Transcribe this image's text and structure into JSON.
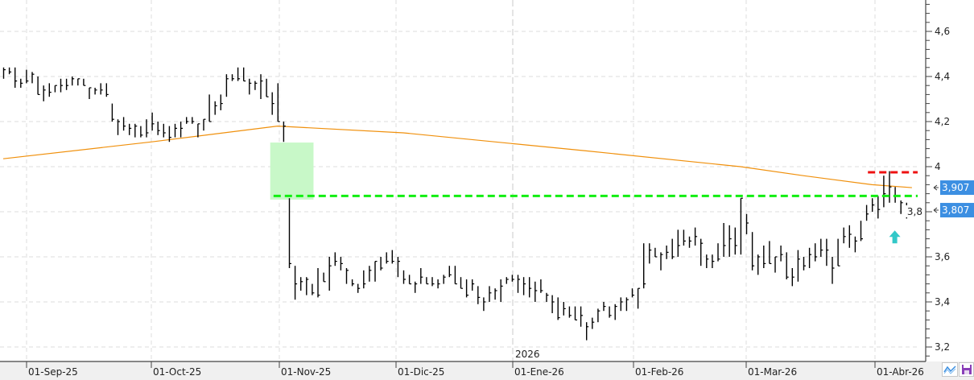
{
  "chart_data": {
    "type": "ohlc-bar",
    "title": "",
    "xlabel": "",
    "ylabel": "",
    "ylim": [
      3.16,
      4.76
    ],
    "grid": true,
    "y_ticks": [
      {
        "value": 3.2,
        "label": "3,2"
      },
      {
        "value": 3.4,
        "label": "3,4"
      },
      {
        "value": 3.6,
        "label": "3,6"
      },
      {
        "value": 3.8,
        "label": "3,8"
      },
      {
        "value": 4.0,
        "label": "4"
      },
      {
        "value": 4.2,
        "label": "4,2"
      },
      {
        "value": 4.4,
        "label": "4,4"
      },
      {
        "value": 4.6,
        "label": "4,6"
      }
    ],
    "x_ticks": [
      "01-Sep-25",
      "01-Oct-25",
      "01-Nov-25",
      "01-Dic-25",
      "01-Ene-26",
      "01-Feb-26",
      "01-Mar-26",
      "01-Abr-26"
    ],
    "year_marker": "2026",
    "bars_hlc": [
      [
        4.44,
        4.39,
        4.43
      ],
      [
        4.44,
        4.41,
        4.42
      ],
      [
        4.44,
        4.35,
        4.38
      ],
      [
        4.39,
        4.35,
        4.37
      ],
      [
        4.43,
        4.37,
        4.38
      ],
      [
        4.42,
        4.37,
        4.41
      ],
      [
        4.4,
        4.32,
        4.32
      ],
      [
        4.36,
        4.29,
        4.34
      ],
      [
        4.37,
        4.31,
        4.33
      ],
      [
        4.36,
        4.33,
        4.36
      ],
      [
        4.39,
        4.33,
        4.36
      ],
      [
        4.39,
        4.34,
        4.36
      ],
      [
        4.4,
        4.36,
        4.39
      ],
      [
        4.39,
        4.36,
        4.39
      ],
      [
        4.39,
        4.36,
        4.36
      ],
      [
        4.35,
        4.3,
        4.35
      ],
      [
        4.35,
        4.32,
        4.34
      ],
      [
        4.37,
        4.32,
        4.34
      ],
      [
        4.37,
        4.31,
        4.32
      ],
      [
        4.28,
        4.2,
        4.21
      ],
      [
        4.21,
        4.14,
        4.2
      ],
      [
        4.22,
        4.16,
        4.18
      ],
      [
        4.19,
        4.14,
        4.17
      ],
      [
        4.19,
        4.13,
        4.18
      ],
      [
        4.18,
        4.13,
        4.14
      ],
      [
        4.21,
        4.13,
        4.15
      ],
      [
        4.24,
        4.16,
        4.19
      ],
      [
        4.2,
        4.14,
        4.16
      ],
      [
        4.19,
        4.13,
        4.15
      ],
      [
        4.18,
        4.11,
        4.13
      ],
      [
        4.19,
        4.13,
        4.17
      ],
      [
        4.2,
        4.13,
        4.17
      ],
      [
        4.22,
        4.19,
        4.2
      ],
      [
        4.22,
        4.19,
        4.2
      ],
      [
        4.19,
        4.13,
        4.19
      ],
      [
        4.21,
        4.16,
        4.21
      ],
      [
        4.32,
        4.2,
        4.2
      ],
      [
        4.29,
        4.23,
        4.27
      ],
      [
        4.32,
        4.25,
        4.28
      ],
      [
        4.41,
        4.31,
        4.39
      ],
      [
        4.41,
        4.38,
        4.39
      ],
      [
        4.44,
        4.38,
        4.39
      ],
      [
        4.44,
        4.38,
        4.38
      ],
      [
        4.39,
        4.32,
        4.37
      ],
      [
        4.38,
        4.34,
        4.37
      ],
      [
        4.41,
        4.3,
        4.38
      ],
      [
        4.39,
        4.31,
        4.31
      ],
      [
        4.33,
        4.23,
        4.28
      ],
      [
        4.37,
        4.2,
        4.2
      ],
      [
        4.2,
        4.11,
        4.18
      ],
      [
        3.86,
        3.55,
        3.57
      ],
      [
        3.56,
        3.41,
        3.48
      ],
      [
        3.51,
        3.45,
        3.49
      ],
      [
        3.51,
        3.43,
        3.5
      ],
      [
        3.48,
        3.43,
        3.44
      ],
      [
        3.55,
        3.42,
        3.43
      ],
      [
        3.53,
        3.49,
        3.49
      ],
      [
        3.6,
        3.45,
        3.56
      ],
      [
        3.62,
        3.56,
        3.58
      ],
      [
        3.6,
        3.54,
        3.57
      ],
      [
        3.55,
        3.48,
        3.54
      ],
      [
        3.5,
        3.47,
        3.48
      ],
      [
        3.48,
        3.44,
        3.46
      ],
      [
        3.54,
        3.46,
        3.48
      ],
      [
        3.56,
        3.49,
        3.54
      ],
      [
        3.58,
        3.49,
        3.58
      ],
      [
        3.6,
        3.54,
        3.55
      ],
      [
        3.62,
        3.57,
        3.58
      ],
      [
        3.63,
        3.57,
        3.58
      ],
      [
        3.6,
        3.51,
        3.58
      ],
      [
        3.54,
        3.48,
        3.5
      ],
      [
        3.52,
        3.48,
        3.48
      ],
      [
        3.49,
        3.44,
        3.48
      ],
      [
        3.55,
        3.48,
        3.51
      ],
      [
        3.51,
        3.48,
        3.48
      ],
      [
        3.51,
        3.47,
        3.48
      ],
      [
        3.5,
        3.46,
        3.48
      ],
      [
        3.52,
        3.48,
        3.51
      ],
      [
        3.56,
        3.51,
        3.52
      ],
      [
        3.56,
        3.48,
        3.48
      ],
      [
        3.51,
        3.46,
        3.46
      ],
      [
        3.5,
        3.42,
        3.43
      ],
      [
        3.5,
        3.45,
        3.48
      ],
      [
        3.47,
        3.39,
        3.42
      ],
      [
        3.42,
        3.36,
        3.4
      ],
      [
        3.47,
        3.4,
        3.44
      ],
      [
        3.46,
        3.41,
        3.45
      ],
      [
        3.5,
        3.4,
        3.47
      ],
      [
        3.51,
        3.48,
        3.5
      ],
      [
        3.52,
        3.49,
        3.5
      ],
      [
        3.52,
        3.44,
        3.5
      ],
      [
        3.51,
        3.43,
        3.48
      ],
      [
        3.51,
        3.42,
        3.46
      ],
      [
        3.49,
        3.4,
        3.45
      ],
      [
        3.5,
        3.44,
        3.45
      ],
      [
        3.44,
        3.4,
        3.43
      ],
      [
        3.43,
        3.35,
        3.4
      ],
      [
        3.42,
        3.32,
        3.33
      ],
      [
        3.4,
        3.34,
        3.37
      ],
      [
        3.38,
        3.33,
        3.34
      ],
      [
        3.38,
        3.32,
        3.32
      ],
      [
        3.38,
        3.29,
        3.34
      ],
      [
        3.31,
        3.23,
        3.29
      ],
      [
        3.33,
        3.28,
        3.31
      ],
      [
        3.37,
        3.31,
        3.36
      ],
      [
        3.4,
        3.36,
        3.38
      ],
      [
        3.38,
        3.33,
        3.34
      ],
      [
        3.39,
        3.32,
        3.38
      ],
      [
        3.42,
        3.36,
        3.4
      ],
      [
        3.42,
        3.36,
        3.41
      ],
      [
        3.46,
        3.42,
        3.43
      ],
      [
        3.46,
        3.37,
        3.46
      ],
      [
        3.66,
        3.46,
        3.48
      ],
      [
        3.66,
        3.57,
        3.63
      ],
      [
        3.64,
        3.6,
        3.6
      ],
      [
        3.62,
        3.54,
        3.61
      ],
      [
        3.65,
        3.59,
        3.62
      ],
      [
        3.68,
        3.59,
        3.6
      ],
      [
        3.72,
        3.6,
        3.65
      ],
      [
        3.72,
        3.65,
        3.67
      ],
      [
        3.69,
        3.64,
        3.67
      ],
      [
        3.73,
        3.65,
        3.69
      ],
      [
        3.68,
        3.56,
        3.66
      ],
      [
        3.61,
        3.55,
        3.59
      ],
      [
        3.61,
        3.55,
        3.58
      ],
      [
        3.66,
        3.58,
        3.59
      ],
      [
        3.75,
        3.6,
        3.65
      ],
      [
        3.74,
        3.6,
        3.68
      ],
      [
        3.73,
        3.61,
        3.65
      ],
      [
        3.86,
        3.61,
        3.86
      ],
      [
        3.79,
        3.7,
        3.75
      ],
      [
        3.71,
        3.54,
        3.56
      ],
      [
        3.61,
        3.52,
        3.6
      ],
      [
        3.65,
        3.55,
        3.57
      ],
      [
        3.67,
        3.57,
        3.57
      ],
      [
        3.6,
        3.53,
        3.6
      ],
      [
        3.65,
        3.58,
        3.61
      ],
      [
        3.62,
        3.5,
        3.51
      ],
      [
        3.55,
        3.47,
        3.51
      ],
      [
        3.63,
        3.49,
        3.59
      ],
      [
        3.6,
        3.54,
        3.56
      ],
      [
        3.64,
        3.55,
        3.61
      ],
      [
        3.66,
        3.58,
        3.6
      ],
      [
        3.68,
        3.6,
        3.63
      ],
      [
        3.68,
        3.56,
        3.63
      ],
      [
        3.6,
        3.48,
        3.55
      ],
      [
        3.68,
        3.56,
        3.56
      ],
      [
        3.73,
        3.66,
        3.69
      ],
      [
        3.74,
        3.64,
        3.7
      ],
      [
        3.69,
        3.62,
        3.67
      ],
      [
        3.76,
        3.67,
        3.68
      ],
      [
        3.83,
        3.76,
        3.79
      ],
      [
        3.86,
        3.8,
        3.83
      ],
      [
        3.87,
        3.77,
        3.81
      ],
      [
        3.96,
        3.82,
        3.88
      ],
      [
        3.98,
        3.84,
        3.91
      ],
      [
        3.91,
        3.84,
        3.87
      ],
      [
        3.85,
        3.79,
        3.84
      ],
      [
        3.84,
        3.77,
        3.79
      ],
      [
        3.82,
        3.79,
        3.807
      ]
    ],
    "moving_average": {
      "color": "#f0900c",
      "points_bar_index_value": [
        [
          0,
          4.035
        ],
        [
          26,
          4.11
        ],
        [
          48,
          4.18
        ],
        [
          70,
          4.15
        ],
        [
          90,
          4.1
        ],
        [
          102,
          4.07
        ],
        [
          129,
          4.0
        ],
        [
          140,
          3.96
        ],
        [
          152,
          3.92
        ],
        [
          159,
          3.907
        ]
      ]
    },
    "levels": [
      {
        "value": 3.87,
        "color": "#11ee11",
        "style": "dashed",
        "from_bar": 48
      },
      {
        "value": 3.975,
        "color": "#ee1111",
        "style": "dashed",
        "from_bar": 152
      }
    ],
    "zone": {
      "from_bar": 47,
      "to_bar": 55,
      "high": 4.107,
      "low": 3.854,
      "color": "#c8f8c8"
    },
    "arrow": {
      "bar": 156,
      "value": 3.66,
      "direction": "up",
      "color": "#33c8c8"
    },
    "price_tags": [
      {
        "value": 3.907,
        "label": "3,907",
        "color": "#3c8fe2"
      },
      {
        "value": 3.807,
        "label": "3,807",
        "color": "#3c8fe2"
      }
    ]
  },
  "toolbar": {
    "chart_type_icon": "line-chart-icon",
    "save_icon": "floppy-disk-icon"
  }
}
